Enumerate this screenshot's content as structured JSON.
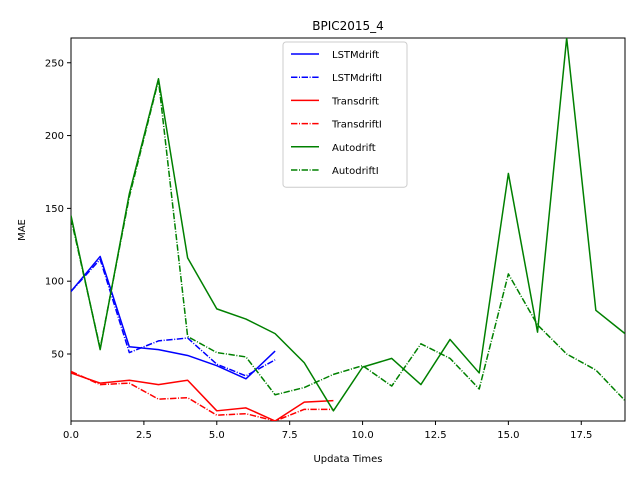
{
  "chart_data": {
    "type": "line",
    "title": "BPIC2015_4",
    "xlabel": "Updata Times",
    "ylabel": "MAE",
    "xlim": [
      0,
      19
    ],
    "ylim": [
      4,
      267
    ],
    "xticks": [
      0.0,
      2.5,
      5.0,
      7.5,
      10.0,
      12.5,
      15.0,
      17.5
    ],
    "xtick_labels": [
      "0.0",
      "2.5",
      "5.0",
      "7.5",
      "10.0",
      "12.5",
      "15.0",
      "17.5"
    ],
    "yticks": [
      50,
      100,
      150,
      200,
      250
    ],
    "ytick_labels": [
      "50",
      "100",
      "150",
      "200",
      "250"
    ],
    "grid": false,
    "legend_position": "top-center",
    "series": [
      {
        "name": "LSTMdrift",
        "color": "#0000ff",
        "style": "solid",
        "x": [
          0,
          1,
          2,
          3,
          4,
          5,
          6,
          7
        ],
        "y": [
          93,
          117,
          55,
          53,
          49,
          42,
          33,
          52
        ]
      },
      {
        "name": "LSTMdriftI",
        "color": "#0000ff",
        "style": "dashdot",
        "x": [
          0,
          1,
          2,
          3,
          4,
          5,
          6,
          7
        ],
        "y": [
          93,
          115,
          51,
          59,
          61,
          43,
          35,
          46
        ]
      },
      {
        "name": "Transdrift",
        "color": "#ff0000",
        "style": "solid",
        "x": [
          0,
          1,
          2,
          3,
          4,
          5,
          6,
          7,
          8,
          9
        ],
        "y": [
          37,
          30,
          32,
          29,
          32,
          11,
          13,
          4,
          17,
          18
        ]
      },
      {
        "name": "TransdriftI",
        "color": "#ff0000",
        "style": "dashdot",
        "x": [
          0,
          1,
          2,
          3,
          4,
          5,
          6,
          7,
          8,
          9
        ],
        "y": [
          38,
          29,
          30,
          19,
          20,
          8,
          9,
          4,
          12,
          12
        ]
      },
      {
        "name": "Autodrift",
        "color": "#008000",
        "style": "solid",
        "x": [
          0,
          1,
          2,
          3,
          4,
          5,
          6,
          7,
          8,
          9,
          10,
          11,
          12,
          13,
          14,
          15,
          16,
          17,
          18,
          19
        ],
        "y": [
          145,
          53,
          160,
          239,
          116,
          81,
          74,
          64,
          44,
          11,
          41,
          47,
          29,
          60,
          37,
          174,
          65,
          267,
          80,
          64
        ]
      },
      {
        "name": "AutodriftI",
        "color": "#008000",
        "style": "dashdot",
        "x": [
          0,
          1,
          2,
          3,
          4,
          5,
          6,
          7,
          8,
          9,
          10,
          11,
          12,
          13,
          14,
          15,
          16,
          17,
          18,
          19
        ],
        "y": [
          143,
          54,
          158,
          238,
          62,
          51,
          48,
          22,
          27,
          36,
          42,
          28,
          57,
          47,
          26,
          105,
          70,
          50,
          39,
          18
        ]
      }
    ]
  }
}
